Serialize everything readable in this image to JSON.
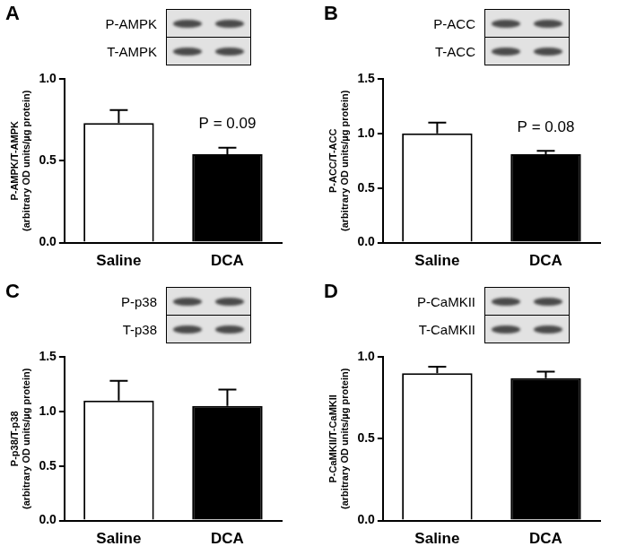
{
  "chart_data": [
    {
      "type": "bar",
      "title": "A",
      "blot_labels": [
        "P-AMPK",
        "T-AMPK"
      ],
      "y_label": [
        "P-AMPK/T-AMPK",
        "(arbitrary OD units/µg protein)"
      ],
      "categories": [
        "Saline",
        "DCA"
      ],
      "values": [
        0.73,
        0.54
      ],
      "errors": [
        0.08,
        0.04
      ],
      "colors": [
        "#ffffff",
        "#000000"
      ],
      "ylim": [
        0,
        1.0
      ],
      "yticks": [
        {
          "value": 0,
          "label": "0.0"
        },
        {
          "value": 0.5,
          "label": "0.5"
        },
        {
          "value": 1.0,
          "label": "1.0"
        }
      ],
      "grid": false,
      "annotation": {
        "text": "P = 0.09",
        "category": "DCA"
      }
    },
    {
      "type": "bar",
      "title": "B",
      "blot_labels": [
        "P-ACC",
        "T-ACC"
      ],
      "y_label": [
        "P-ACC/T-ACC",
        "(arbitrary OD units/µg protein)"
      ],
      "categories": [
        "Saline",
        "DCA"
      ],
      "values": [
        1.0,
        0.81
      ],
      "errors": [
        0.1,
        0.03
      ],
      "colors": [
        "#ffffff",
        "#000000"
      ],
      "ylim": [
        0,
        1.5
      ],
      "yticks": [
        {
          "value": 0,
          "label": "0.0"
        },
        {
          "value": 0.5,
          "label": "0.5"
        },
        {
          "value": 1.0,
          "label": "1.0"
        },
        {
          "value": 1.5,
          "label": "1.5"
        }
      ],
      "grid": false,
      "annotation": {
        "text": "P = 0.08",
        "category": "DCA"
      }
    },
    {
      "type": "bar",
      "title": "C",
      "blot_labels": [
        "P-p38",
        "T-p38"
      ],
      "y_label": [
        "P-p38/T-p38",
        "(arbitrary OD units/µg protein)"
      ],
      "categories": [
        "Saline",
        "DCA"
      ],
      "values": [
        1.1,
        1.05
      ],
      "errors": [
        0.18,
        0.15
      ],
      "colors": [
        "#ffffff",
        "#000000"
      ],
      "ylim": [
        0,
        1.5
      ],
      "yticks": [
        {
          "value": 0,
          "label": "0.0"
        },
        {
          "value": 0.5,
          "label": "0.5"
        },
        {
          "value": 1.0,
          "label": "1.0"
        },
        {
          "value": 1.5,
          "label": "1.5"
        }
      ],
      "grid": false
    },
    {
      "type": "bar",
      "title": "D",
      "blot_labels": [
        "P-CaMKII",
        "T-CaMKII"
      ],
      "y_label": [
        "P-CaMKII/T-CaMKII",
        "(arbitrary OD units/µg protein)"
      ],
      "categories": [
        "Saline",
        "DCA"
      ],
      "values": [
        0.9,
        0.87
      ],
      "errors": [
        0.04,
        0.04
      ],
      "colors": [
        "#ffffff",
        "#000000"
      ],
      "ylim": [
        0,
        1.0
      ],
      "yticks": [
        {
          "value": 0,
          "label": "0.0"
        },
        {
          "value": 0.5,
          "label": "0.5"
        },
        {
          "value": 1.0,
          "label": "1.0"
        }
      ],
      "grid": false
    }
  ]
}
